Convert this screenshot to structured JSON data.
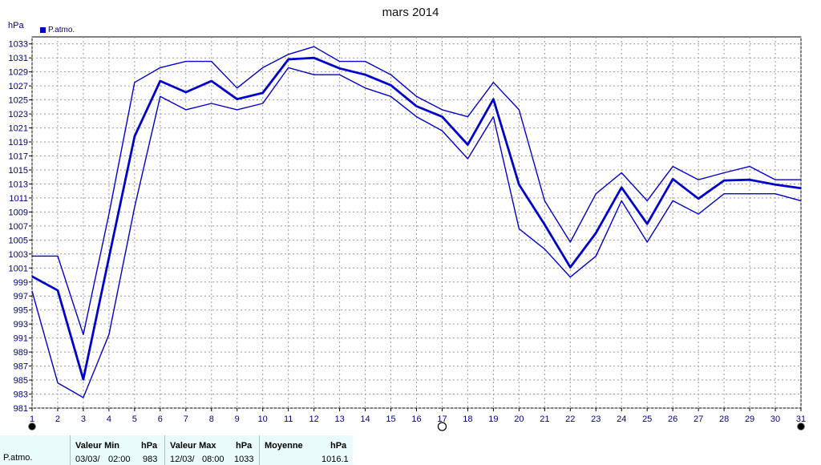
{
  "chart_data": {
    "type": "line",
    "title": "mars 2014",
    "ylabel": "hPa",
    "legend": "P.atmo.",
    "ylim": [
      981,
      1034
    ],
    "yticks": [
      981,
      983,
      985,
      987,
      989,
      991,
      993,
      995,
      997,
      999,
      1001,
      1003,
      1005,
      1007,
      1009,
      1011,
      1013,
      1015,
      1017,
      1019,
      1021,
      1023,
      1025,
      1027,
      1029,
      1031,
      1033
    ],
    "x": [
      1,
      2,
      3,
      4,
      5,
      6,
      7,
      8,
      9,
      10,
      11,
      12,
      13,
      14,
      15,
      16,
      17,
      18,
      19,
      20,
      21,
      22,
      23,
      24,
      25,
      26,
      27,
      28,
      29,
      30,
      31
    ],
    "grid": true,
    "series": [
      {
        "values": [
          1002.7,
          1002.7,
          991.5,
          1008.7,
          1027.5,
          1029.6,
          1030.5,
          1030.5,
          1026.7,
          1029.6,
          1031.5,
          1032.6,
          1030.5,
          1030.5,
          1028.6,
          1025.5,
          1023.6,
          1022.6,
          1027.5,
          1023.6,
          1010.6,
          1004.7,
          1011.6,
          1014.6,
          1010.6,
          1015.5,
          1013.6,
          1014.6,
          1015.5,
          1013.6,
          1013.6
        ]
      },
      {
        "values": [
          999.8,
          997.8,
          985.1,
          1002.5,
          1019.8,
          1027.7,
          1026.1,
          1027.7,
          1025.1,
          1026.0,
          1030.8,
          1031.0,
          1029.5,
          1028.6,
          1027.1,
          1024.1,
          1022.6,
          1018.6,
          1025.1,
          1012.9,
          1007.2,
          1001.1,
          1006.0,
          1012.5,
          1007.3,
          1013.7,
          1010.9,
          1013.5,
          1013.6,
          1012.9,
          1012.4
        ]
      },
      {
        "values": [
          997.7,
          984.6,
          982.5,
          991.5,
          1009.7,
          1025.5,
          1023.6,
          1024.5,
          1023.6,
          1024.5,
          1029.6,
          1028.6,
          1028.6,
          1026.7,
          1025.5,
          1022.6,
          1020.6,
          1016.6,
          1022.6,
          1006.6,
          1003.7,
          999.7,
          1002.7,
          1010.6,
          1004.7,
          1010.6,
          1008.7,
          1011.6,
          1011.6,
          1011.6,
          1010.6
        ]
      }
    ],
    "markers": [
      {
        "x": 1,
        "shape": "filled-circle"
      },
      {
        "x": 17,
        "shape": "open-circle"
      },
      {
        "x": 31,
        "shape": "filled-circle"
      }
    ],
    "line_color": "#0000cc",
    "grid_color": "#999999"
  },
  "stats": {
    "row_label": "P.atmo.",
    "min": {
      "header": "Valeur Min",
      "unit": "hPa",
      "date": "03/03/",
      "time": "02:00",
      "value": "983"
    },
    "max": {
      "header": "Valeur Max",
      "unit": "hPa",
      "date": "12/03/",
      "time": "08:00",
      "value": "1033"
    },
    "mean": {
      "header": "Moyenne",
      "unit": "hPa",
      "value": "1016.1"
    }
  }
}
